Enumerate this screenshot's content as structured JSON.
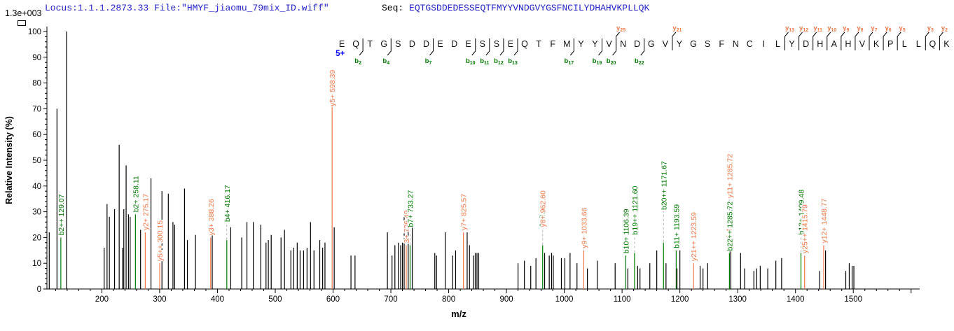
{
  "header": {
    "max_intensity": "1.3e+003",
    "locus_file": "Locus:1.1.1.2873.33 File:\"HMYF_jiaomu_79mix_ID.wiff\"",
    "seq_label": "Seq:",
    "sequence": "EQTGSDDEDESSEQTFMYYVNDGVYGSFNCILYDHAHVKPLLQK"
  },
  "colors": {
    "b_ion": "#007a00",
    "y_ion": "#f07848",
    "precursor": "#0000ff",
    "header_blue": "#2222cc",
    "peak": "#000000",
    "axis": "#000000",
    "dash": "#b4b4b4",
    "residue": "#111111"
  },
  "chart_data": {
    "type": "bar",
    "subtype": "centroid-mass-spectrum",
    "title": "",
    "xlabel": "m/z",
    "ylabel": "Relative  Intensity (%)",
    "xlim": [
      105,
      1610
    ],
    "ylim": [
      0,
      100
    ],
    "x_major_tick": 100,
    "x_minor_tick": 20,
    "x_label_range": [
      200,
      1500
    ],
    "y_major_tick": 10,
    "y_minor_tick": 2,
    "grid": false,
    "precursor_charge": "5+",
    "sequence_annotation": {
      "residues": "EQTGSDDEDESSEQTFMYYVNDGVYGSFNCILYDHAHVKPLLQK",
      "b_cuts": [
        {
          "after": 2,
          "ion": "b2"
        },
        {
          "after": 4,
          "ion": "b4"
        },
        {
          "after": 7,
          "ion": "b7"
        },
        {
          "after": 10,
          "ion": "b10"
        },
        {
          "after": 11,
          "ion": "b11"
        },
        {
          "after": 12,
          "ion": "b12"
        },
        {
          "after": 13,
          "ion": "b13"
        },
        {
          "after": 17,
          "ion": "b17"
        },
        {
          "after": 19,
          "ion": "b19"
        },
        {
          "after": 20,
          "ion": "b20"
        },
        {
          "after": 22,
          "ion": "b22"
        }
      ],
      "y_cuts": [
        {
          "before": 20,
          "ion": "y25"
        },
        {
          "before": 24,
          "ion": "y21"
        },
        {
          "before": 32,
          "ion": "y13"
        },
        {
          "before": 33,
          "ion": "y12"
        },
        {
          "before": 34,
          "ion": "y11"
        },
        {
          "before": 35,
          "ion": "y10"
        },
        {
          "before": 36,
          "ion": "y9"
        },
        {
          "before": 37,
          "ion": "y8"
        },
        {
          "before": 38,
          "ion": "y7"
        },
        {
          "before": 39,
          "ion": "y6"
        },
        {
          "before": 40,
          "ion": "y5"
        },
        {
          "before": 42,
          "ion": "y3"
        },
        {
          "before": 43,
          "ion": "y2"
        }
      ]
    },
    "peaks": [
      {
        "mz": 109,
        "i": 22
      },
      {
        "mz": 122.4,
        "i": 70
      },
      {
        "mz": 129.07,
        "i": 20,
        "ion": "b",
        "label": "b2++ 129.07"
      },
      {
        "mz": 139,
        "i": 100
      },
      {
        "mz": 204,
        "i": 16
      },
      {
        "mz": 209,
        "i": 33
      },
      {
        "mz": 213,
        "i": 28
      },
      {
        "mz": 222,
        "i": 31
      },
      {
        "mz": 230,
        "i": 56
      },
      {
        "mz": 236,
        "i": 16
      },
      {
        "mz": 238,
        "i": 31
      },
      {
        "mz": 242,
        "i": 48
      },
      {
        "mz": 246,
        "i": 29
      },
      {
        "mz": 249,
        "i": 28
      },
      {
        "mz": 258.11,
        "i": 29,
        "ion": "b",
        "label": "b2+ 258.11"
      },
      {
        "mz": 267,
        "i": 23
      },
      {
        "mz": 275.17,
        "i": 22,
        "ion": "y",
        "label": "y2+ 275.17"
      },
      {
        "mz": 285,
        "i": 43
      },
      {
        "mz": 300.15,
        "i": 10,
        "ion": "y",
        "label": "y5++ 300.15"
      },
      {
        "mz": 304,
        "i": 38
      },
      {
        "mz": 315,
        "i": 37
      },
      {
        "mz": 323,
        "i": 26
      },
      {
        "mz": 326,
        "i": 25
      },
      {
        "mz": 343,
        "i": 39
      },
      {
        "mz": 348,
        "i": 19
      },
      {
        "mz": 362,
        "i": 21
      },
      {
        "mz": 388.26,
        "i": 20,
        "ion": "y",
        "label": "y3+ 388.26"
      },
      {
        "mz": 391,
        "i": 21
      },
      {
        "mz": 416.17,
        "i": 19,
        "ion": "b",
        "label": "b4+ 416.17",
        "dash": true
      },
      {
        "mz": 423,
        "i": 24
      },
      {
        "mz": 442,
        "i": 20
      },
      {
        "mz": 451,
        "i": 26
      },
      {
        "mz": 462,
        "i": 26
      },
      {
        "mz": 475,
        "i": 25
      },
      {
        "mz": 484,
        "i": 18
      },
      {
        "mz": 488,
        "i": 19
      },
      {
        "mz": 493,
        "i": 21
      },
      {
        "mz": 510,
        "i": 20
      },
      {
        "mz": 516,
        "i": 23
      },
      {
        "mz": 527,
        "i": 15
      },
      {
        "mz": 532,
        "i": 16
      },
      {
        "mz": 538,
        "i": 18
      },
      {
        "mz": 543,
        "i": 15
      },
      {
        "mz": 549,
        "i": 15
      },
      {
        "mz": 555,
        "i": 16
      },
      {
        "mz": 561,
        "i": 26
      },
      {
        "mz": 567,
        "i": 15
      },
      {
        "mz": 577,
        "i": 19
      },
      {
        "mz": 582,
        "i": 16
      },
      {
        "mz": 586,
        "i": 18
      },
      {
        "mz": 598.39,
        "i": 71,
        "ion": "y",
        "label": "y5+ 598.39",
        "tag": "5+",
        "lby": 152
      },
      {
        "mz": 602,
        "i": 24
      },
      {
        "mz": 631,
        "i": 13
      },
      {
        "mz": 638,
        "i": 13
      },
      {
        "mz": 694,
        "i": 22
      },
      {
        "mz": 702,
        "i": 13
      },
      {
        "mz": 707,
        "i": 17
      },
      {
        "mz": 713,
        "i": 18
      },
      {
        "mz": 717,
        "i": 17
      },
      {
        "mz": 720,
        "i": 18
      },
      {
        "mz": 723,
        "i": 28
      },
      {
        "mz": 726.49,
        "i": 17,
        "ion": "y",
        "label": "3+ 726.49"
      },
      {
        "mz": 730,
        "i": 27
      },
      {
        "mz": 733.27,
        "i": 17,
        "ion": "b",
        "label": "b7+ 733.27",
        "dash": true
      },
      {
        "mz": 737,
        "i": 26
      },
      {
        "mz": 776,
        "i": 14
      },
      {
        "mz": 779,
        "i": 13
      },
      {
        "mz": 794,
        "i": 22
      },
      {
        "mz": 807,
        "i": 13
      },
      {
        "mz": 812,
        "i": 15
      },
      {
        "mz": 825.57,
        "i": 22,
        "ion": "y",
        "label": "y7+ 825.57"
      },
      {
        "mz": 832,
        "i": 22
      },
      {
        "mz": 836,
        "i": 17
      },
      {
        "mz": 843,
        "i": 13
      },
      {
        "mz": 846,
        "i": 14
      },
      {
        "mz": 849,
        "i": 14
      },
      {
        "mz": 852,
        "i": 14
      },
      {
        "mz": 920,
        "i": 10
      },
      {
        "mz": 931,
        "i": 11
      },
      {
        "mz": 942,
        "i": 9
      },
      {
        "mz": 951,
        "i": 12
      },
      {
        "mz": 962.6,
        "i": 17,
        "ion": "y",
        "label": "y8+ 962.60",
        "dash": true,
        "line": "b",
        "occl": {
          "text": "962.32",
          "ion": "b"
        }
      },
      {
        "mz": 966,
        "i": 14
      },
      {
        "mz": 974,
        "i": 13
      },
      {
        "mz": 978,
        "i": 14
      },
      {
        "mz": 981,
        "i": 13
      },
      {
        "mz": 995,
        "i": 12
      },
      {
        "mz": 1001,
        "i": 12
      },
      {
        "mz": 1010,
        "i": 14
      },
      {
        "mz": 1022,
        "i": 10
      },
      {
        "mz": 1033.66,
        "i": 15,
        "ion": "y",
        "label": "y9+ 1033.66"
      },
      {
        "mz": 1040,
        "i": 8
      },
      {
        "mz": 1057,
        "i": 11
      },
      {
        "mz": 1088,
        "i": 10
      },
      {
        "mz": 1106.39,
        "i": 13,
        "ion": "b",
        "label": "b10+ 1106.39"
      },
      {
        "mz": 1110,
        "i": 8
      },
      {
        "mz": 1121.6,
        "i": 14,
        "ion": "b",
        "label": "b19++ 1121.60",
        "dash": true
      },
      {
        "mz": 1127,
        "i": 9
      },
      {
        "mz": 1131,
        "i": 8
      },
      {
        "mz": 1148,
        "i": 10
      },
      {
        "mz": 1160,
        "i": 15
      },
      {
        "mz": 1171.67,
        "i": 18,
        "ion": "b",
        "label": "b20++ 1171.67",
        "dash": true,
        "lby": 300
      },
      {
        "mz": 1176,
        "i": 10
      },
      {
        "mz": 1193.59,
        "i": 15,
        "ion": "b",
        "label": "b11+ 1193.59"
      },
      {
        "mz": 1195,
        "i": 8
      },
      {
        "mz": 1200,
        "i": 15
      },
      {
        "mz": 1223.59,
        "i": 10,
        "ion": "y",
        "label": "y21++ 1223.59"
      },
      {
        "mz": 1235,
        "i": 9
      },
      {
        "mz": 1240,
        "i": 8
      },
      {
        "mz": 1248,
        "i": 10
      },
      {
        "mz": 1285.72,
        "i": 14,
        "ion": "b",
        "label": "b22++ 1285.72",
        "occl": {
          "text": "1286.48",
          "ion": "y"
        },
        "label2": {
          "text": "y11+ 1285.72",
          "ion": "y",
          "lby": 283,
          "dash": true
        }
      },
      {
        "mz": 1288,
        "i": 15
      },
      {
        "mz": 1305,
        "i": 14
      },
      {
        "mz": 1312,
        "i": 8
      },
      {
        "mz": 1328,
        "i": 7
      },
      {
        "mz": 1333,
        "i": 8
      },
      {
        "mz": 1339,
        "i": 9
      },
      {
        "mz": 1352,
        "i": 8
      },
      {
        "mz": 1366,
        "i": 11
      },
      {
        "mz": 1376,
        "i": 12
      },
      {
        "mz": 1409.48,
        "i": 14,
        "ion": "b",
        "label": "b13+ 1409.48",
        "dash": true,
        "occluded": true
      },
      {
        "mz": 1415.79,
        "i": 13,
        "ion": "y",
        "label": "y25++ 1415.79"
      },
      {
        "mz": 1442,
        "i": 7
      },
      {
        "mz": 1448.77,
        "i": 17,
        "ion": "y",
        "label": "y12+ 1448.77"
      },
      {
        "mz": 1452,
        "i": 15
      },
      {
        "mz": 1487,
        "i": 7
      },
      {
        "mz": 1493,
        "i": 10
      },
      {
        "mz": 1498,
        "i": 9
      },
      {
        "mz": 1501,
        "i": 9
      }
    ]
  }
}
